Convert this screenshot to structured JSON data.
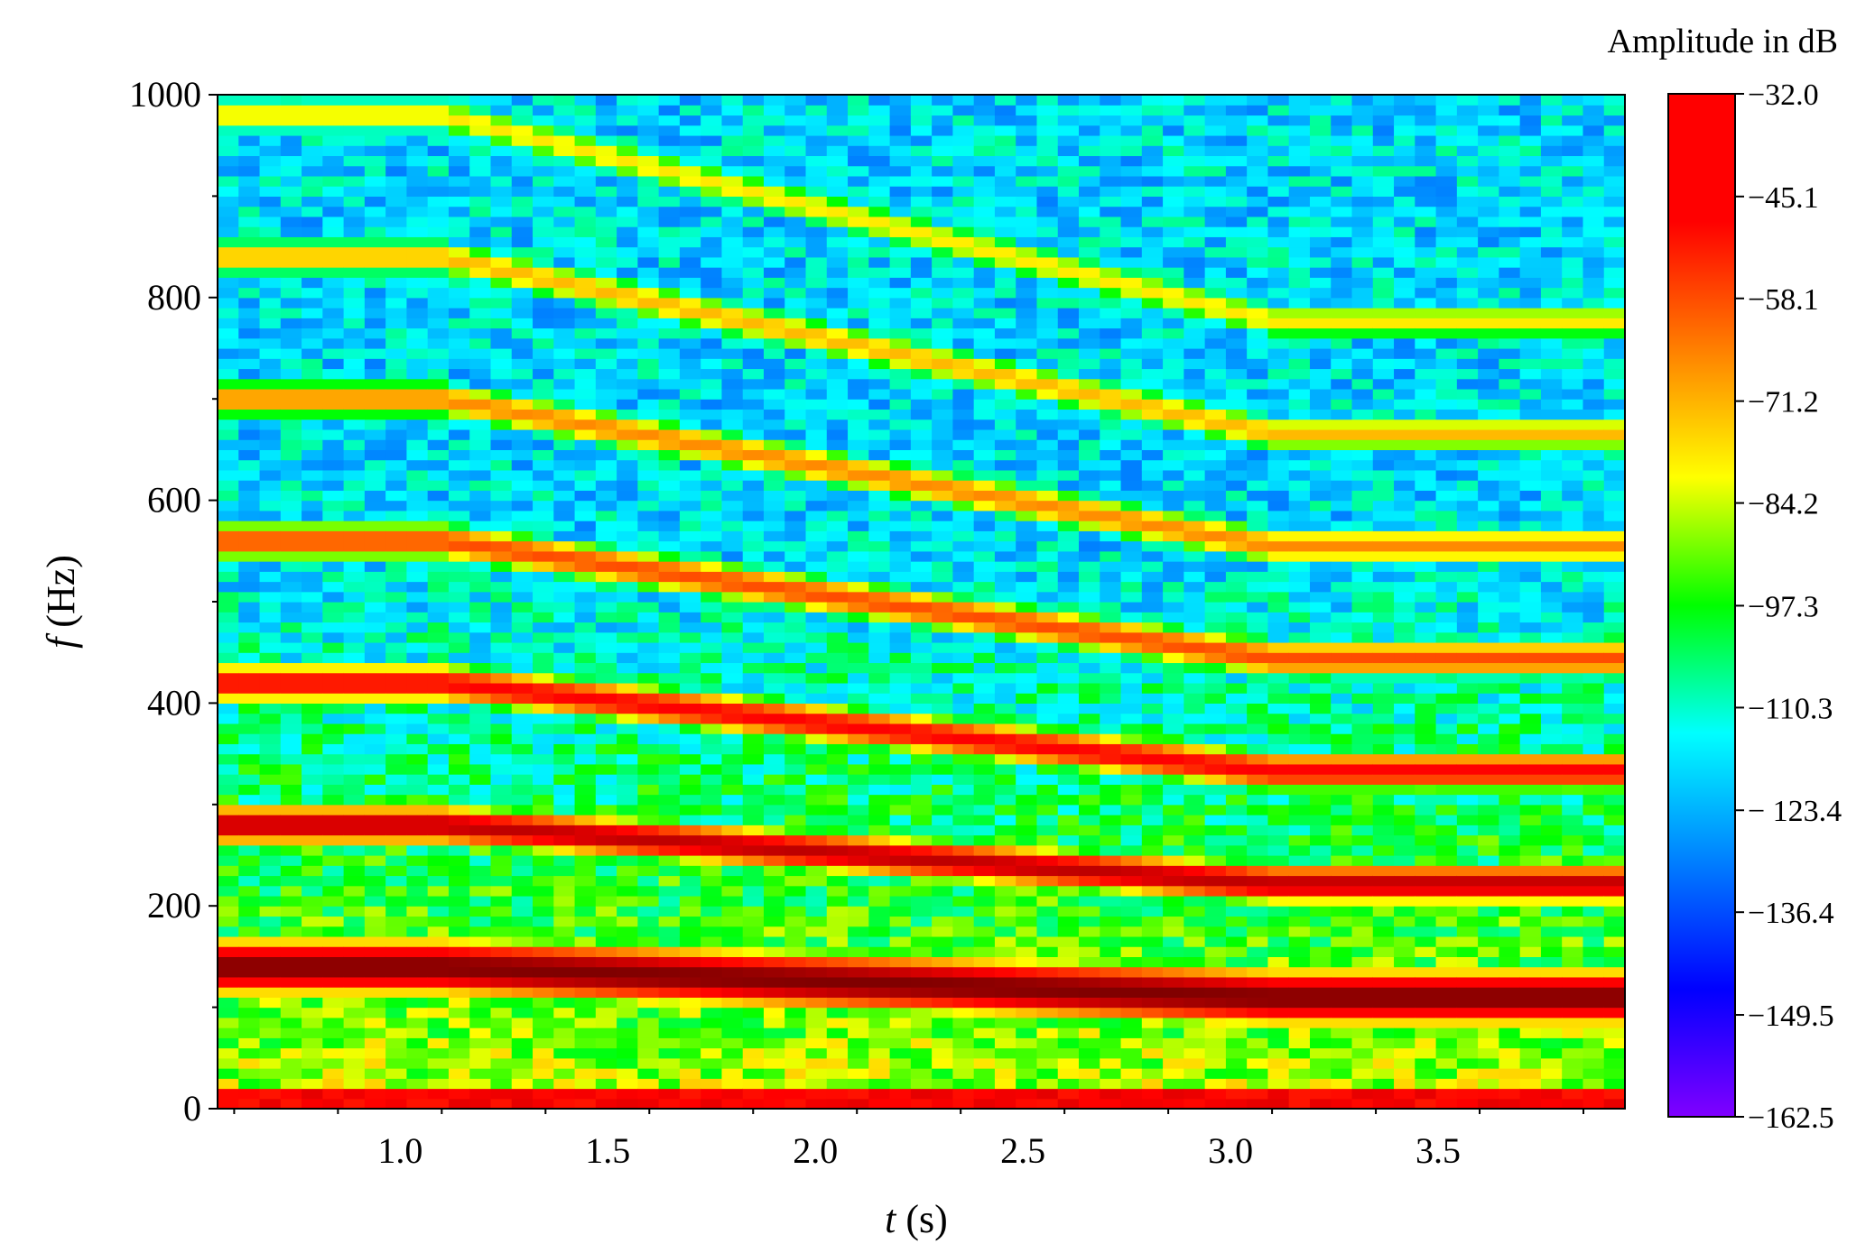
{
  "chart_data": {
    "type": "heatmap",
    "title": "",
    "xlabel_var": "t",
    "xlabel_unit": " (s)",
    "ylabel_var": "f",
    "ylabel_unit": " (Hz)",
    "xlim": [
      0.56,
      3.95
    ],
    "ylim": [
      0,
      1000
    ],
    "x_ticks": [
      1.0,
      1.5,
      2.0,
      2.5,
      3.0,
      3.5
    ],
    "x_tick_labels": [
      "1.0",
      "1.5",
      "2.0",
      "2.5",
      "3.0",
      "3.5"
    ],
    "y_ticks": [
      0,
      200,
      400,
      600,
      800,
      1000
    ],
    "y_tick_labels": [
      "0",
      "200",
      "400",
      "600",
      "800",
      "1000"
    ],
    "grid": false,
    "colormap": "jet",
    "colorbar": {
      "title": "Amplitude in dB",
      "min": -162.5,
      "max": -32.0,
      "tick_labels": [
        "−32.0",
        "−45.1",
        "−58.1",
        "−71.2",
        "−84.2",
        "−97.3",
        "−110.3",
        "− 123.4",
        "−136.4",
        "−149.5",
        "−162.5"
      ],
      "tick_values": [
        -32.0,
        -45.1,
        -58.1,
        -71.2,
        -84.2,
        -97.3,
        -110.3,
        -123.4,
        -136.4,
        -149.5,
        -162.5
      ]
    },
    "harmonic_tracks_hz": {
      "description_times_s": [
        0.56,
        1.1,
        3.1,
        3.95
      ],
      "order_1": [
        140,
        140,
        110,
        110
      ],
      "order_2": [
        280,
        280,
        222,
        222
      ],
      "order_3": [
        420,
        420,
        333,
        333
      ],
      "order_4": [
        560,
        560,
        444,
        444
      ],
      "order_5": [
        700,
        700,
        555,
        555
      ],
      "order_6": [
        840,
        840,
        666,
        666
      ],
      "order_7": [
        980,
        980,
        777,
        777
      ]
    },
    "track_peak_db": [
      -32,
      -40,
      -48,
      -58,
      -66,
      -72,
      -78
    ],
    "low_frequency_band_hz": [
      0,
      20
    ],
    "low_frequency_band_db": -48,
    "background_db_low_freq": -85,
    "background_db_high_freq": -118
  }
}
